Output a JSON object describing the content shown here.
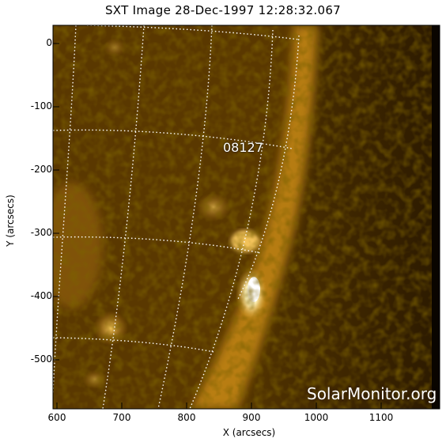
{
  "title": "SXT Image 28-Dec-1997 12:28:32.067",
  "axes": {
    "xlabel": "X (arcsecs)",
    "ylabel": "Y (arcsecs)",
    "x_ticks": [
      "600",
      "700",
      "800",
      "900",
      "1000",
      "1100"
    ],
    "y_ticks": [
      "0",
      "-100",
      "-200",
      "-300",
      "-400",
      "-500"
    ]
  },
  "annotations": {
    "region_label": "08127",
    "watermark": "SolarMonitor.org"
  },
  "colors": {
    "corona_dark": "#2a1800",
    "corona_mid": "#8a5600",
    "limb": "#d79a1c",
    "flare": "#fff5c8",
    "grid": "#ffffff"
  }
}
